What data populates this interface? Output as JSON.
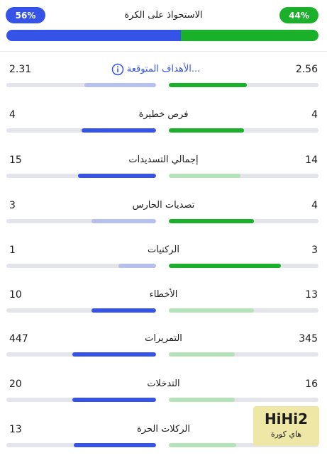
{
  "possession": {
    "title": "الاستحواذ على الكرة",
    "left_pct": "56%",
    "right_pct": "44%",
    "left_value": 56,
    "right_value": 44
  },
  "stats": [
    {
      "label": "الأهداف المتوقعة...",
      "left": "2.31",
      "right": "2.56",
      "left_fill": 0.48,
      "right_fill": 0.52,
      "left_color": "light-blue",
      "right_color": "green",
      "info_icon": "info-icon"
    },
    {
      "label": "فرص خطيرة",
      "left": "4",
      "right": "4",
      "left_fill": 0.5,
      "right_fill": 0.5,
      "left_color": "blue",
      "right_color": "green"
    },
    {
      "label": "إجمالي التسديدات",
      "left": "15",
      "right": "14",
      "left_fill": 0.52,
      "right_fill": 0.48,
      "left_color": "blue",
      "right_color": "light-green"
    },
    {
      "label": "تصديات الحارس",
      "left": "3",
      "right": "4",
      "left_fill": 0.43,
      "right_fill": 0.57,
      "left_color": "light-blue",
      "right_color": "green"
    },
    {
      "label": "الركنيات",
      "left": "1",
      "right": "3",
      "left_fill": 0.25,
      "right_fill": 0.75,
      "left_color": "light-blue",
      "right_color": "green"
    },
    {
      "label": "الأخطاء",
      "left": "10",
      "right": "13",
      "left_fill": 0.43,
      "right_fill": 0.57,
      "left_color": "blue",
      "right_color": "light-green"
    },
    {
      "label": "التمريرات",
      "left": "447",
      "right": "345",
      "left_fill": 0.56,
      "right_fill": 0.44,
      "left_color": "blue",
      "right_color": "light-green"
    },
    {
      "label": "التدخلات",
      "left": "20",
      "right": "16",
      "left_fill": 0.56,
      "right_fill": 0.44,
      "left_color": "blue",
      "right_color": "light-green"
    },
    {
      "label": "الركلات الحرة",
      "left": "13",
      "right": "",
      "left_fill": 0.55,
      "right_fill": 0.45,
      "left_color": "blue",
      "right_color": "light-green"
    }
  ],
  "logo": {
    "brand": "HiHi2",
    "sub": "هاي كورة"
  },
  "colors": {
    "blue": "#3553e6",
    "green": "#1ab02a",
    "light_blue": "#b7c0ec",
    "light_green": "#b4e3b8",
    "track": "#e3e5eb"
  }
}
